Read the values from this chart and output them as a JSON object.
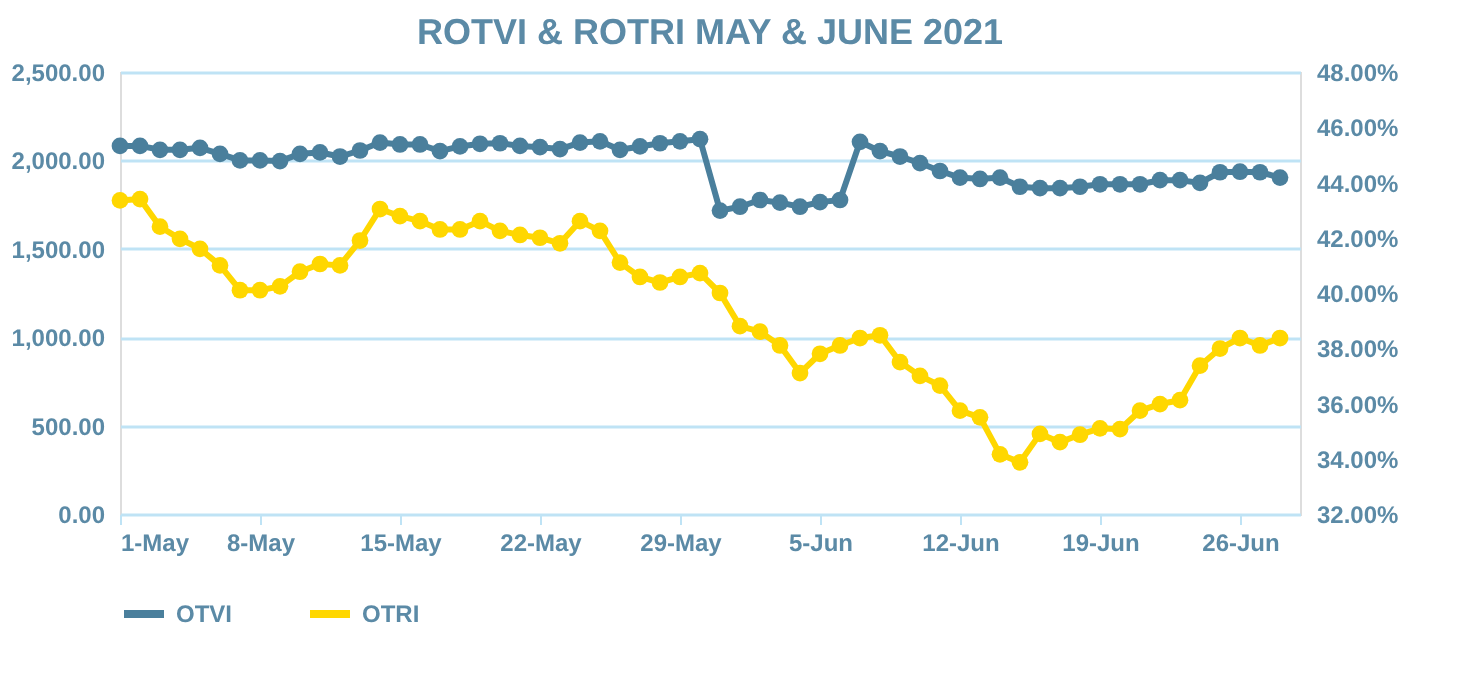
{
  "chart_data": {
    "type": "line",
    "title": "ROTVI & ROTRI MAY & JUNE 2021",
    "x": [
      "2021-05-01",
      "2021-05-02",
      "2021-05-03",
      "2021-05-04",
      "2021-05-05",
      "2021-05-06",
      "2021-05-07",
      "2021-05-08",
      "2021-05-09",
      "2021-05-10",
      "2021-05-11",
      "2021-05-12",
      "2021-05-13",
      "2021-05-14",
      "2021-05-15",
      "2021-05-16",
      "2021-05-17",
      "2021-05-18",
      "2021-05-19",
      "2021-05-20",
      "2021-05-21",
      "2021-05-22",
      "2021-05-23",
      "2021-05-24",
      "2021-05-25",
      "2021-05-26",
      "2021-05-27",
      "2021-05-28",
      "2021-05-29",
      "2021-05-30",
      "2021-05-31",
      "2021-06-01",
      "2021-06-02",
      "2021-06-03",
      "2021-06-04",
      "2021-06-05",
      "2021-06-06",
      "2021-06-07",
      "2021-06-08",
      "2021-06-09",
      "2021-06-10",
      "2021-06-11",
      "2021-06-12",
      "2021-06-13",
      "2021-06-14",
      "2021-06-15",
      "2021-06-16",
      "2021-06-17",
      "2021-06-18",
      "2021-06-19",
      "2021-06-20",
      "2021-06-21",
      "2021-06-22",
      "2021-06-23",
      "2021-06-24",
      "2021-06-25",
      "2021-06-26",
      "2021-06-27",
      "2021-06-28"
    ],
    "series": [
      {
        "name": "OTVI",
        "color": "#4a7f9c",
        "values": [
          2082,
          2082,
          2060,
          2060,
          2071,
          2037,
          2000,
          2000,
          1996,
          2037,
          2045,
          2022,
          2056,
          2101,
          2090,
          2090,
          2052,
          2079,
          2094,
          2097,
          2082,
          2075,
          2064,
          2101,
          2108,
          2060,
          2079,
          2097,
          2108,
          2120,
          1716,
          1738,
          1776,
          1761,
          1738,
          1764,
          1776,
          2105,
          2052,
          2022,
          1985,
          1940,
          1903,
          1895,
          1903,
          1851,
          1843,
          1843,
          1851,
          1865,
          1865,
          1865,
          1888,
          1888,
          1873,
          1933,
          1936,
          1933,
          1903
        ]
      },
      {
        "name": "OTRI",
        "color": "#ffd700",
        "axis": "y2",
        "values": [
          43.35,
          43.4,
          42.4,
          41.96,
          41.6,
          41.0,
          40.1,
          40.1,
          40.24,
          40.77,
          41.05,
          41.0,
          41.9,
          43.04,
          42.78,
          42.6,
          42.3,
          42.3,
          42.6,
          42.25,
          42.1,
          42.0,
          41.8,
          42.6,
          42.25,
          41.1,
          40.58,
          40.38,
          40.58,
          40.72,
          40.0,
          38.8,
          38.6,
          38.1,
          37.1,
          37.8,
          38.1,
          38.37,
          38.47,
          37.5,
          37.0,
          36.65,
          35.74,
          35.5,
          34.16,
          33.87,
          34.9,
          34.6,
          34.87,
          35.1,
          35.07,
          35.74,
          35.98,
          36.12,
          37.37,
          37.99,
          38.37,
          38.1,
          38.37
        ]
      }
    ],
    "xlim": [
      "2021-05-01",
      "2021-06-29"
    ],
    "xticks": [
      {
        "value": "2021-05-01",
        "label": "1-May"
      },
      {
        "value": "2021-05-08",
        "label": "8-May"
      },
      {
        "value": "2021-05-15",
        "label": "15-May"
      },
      {
        "value": "2021-05-22",
        "label": "22-May"
      },
      {
        "value": "2021-05-29",
        "label": "29-May"
      },
      {
        "value": "2021-06-05",
        "label": "5-Jun"
      },
      {
        "value": "2021-06-12",
        "label": "12-Jun"
      },
      {
        "value": "2021-06-19",
        "label": "19-Jun"
      },
      {
        "value": "2021-06-26",
        "label": "26-Jun"
      }
    ],
    "ylim": [
      0,
      2500
    ],
    "yticks": [
      {
        "value": 0,
        "label": "0.00"
      },
      {
        "value": 500,
        "label": "500.00"
      },
      {
        "value": 1000,
        "label": "1,000.00"
      },
      {
        "value": 1500,
        "label": "1,500.00"
      },
      {
        "value": 2000,
        "label": "2,000.00"
      },
      {
        "value": 2500,
        "label": "2,500.00"
      }
    ],
    "y2lim": [
      32,
      48
    ],
    "y2ticks": [
      {
        "value": 32,
        "label": "32.00%"
      },
      {
        "value": 34,
        "label": "34.00%"
      },
      {
        "value": 36,
        "label": "36.00%"
      },
      {
        "value": 38,
        "label": "38.00%"
      },
      {
        "value": 40,
        "label": "40.00%"
      },
      {
        "value": 42,
        "label": "42.00%"
      },
      {
        "value": 44,
        "label": "44.00%"
      },
      {
        "value": 46,
        "label": "46.00%"
      },
      {
        "value": 48,
        "label": "48.00%"
      }
    ],
    "grid": "y",
    "legend": "bottom",
    "marker": "circle",
    "line_style": "solid"
  }
}
